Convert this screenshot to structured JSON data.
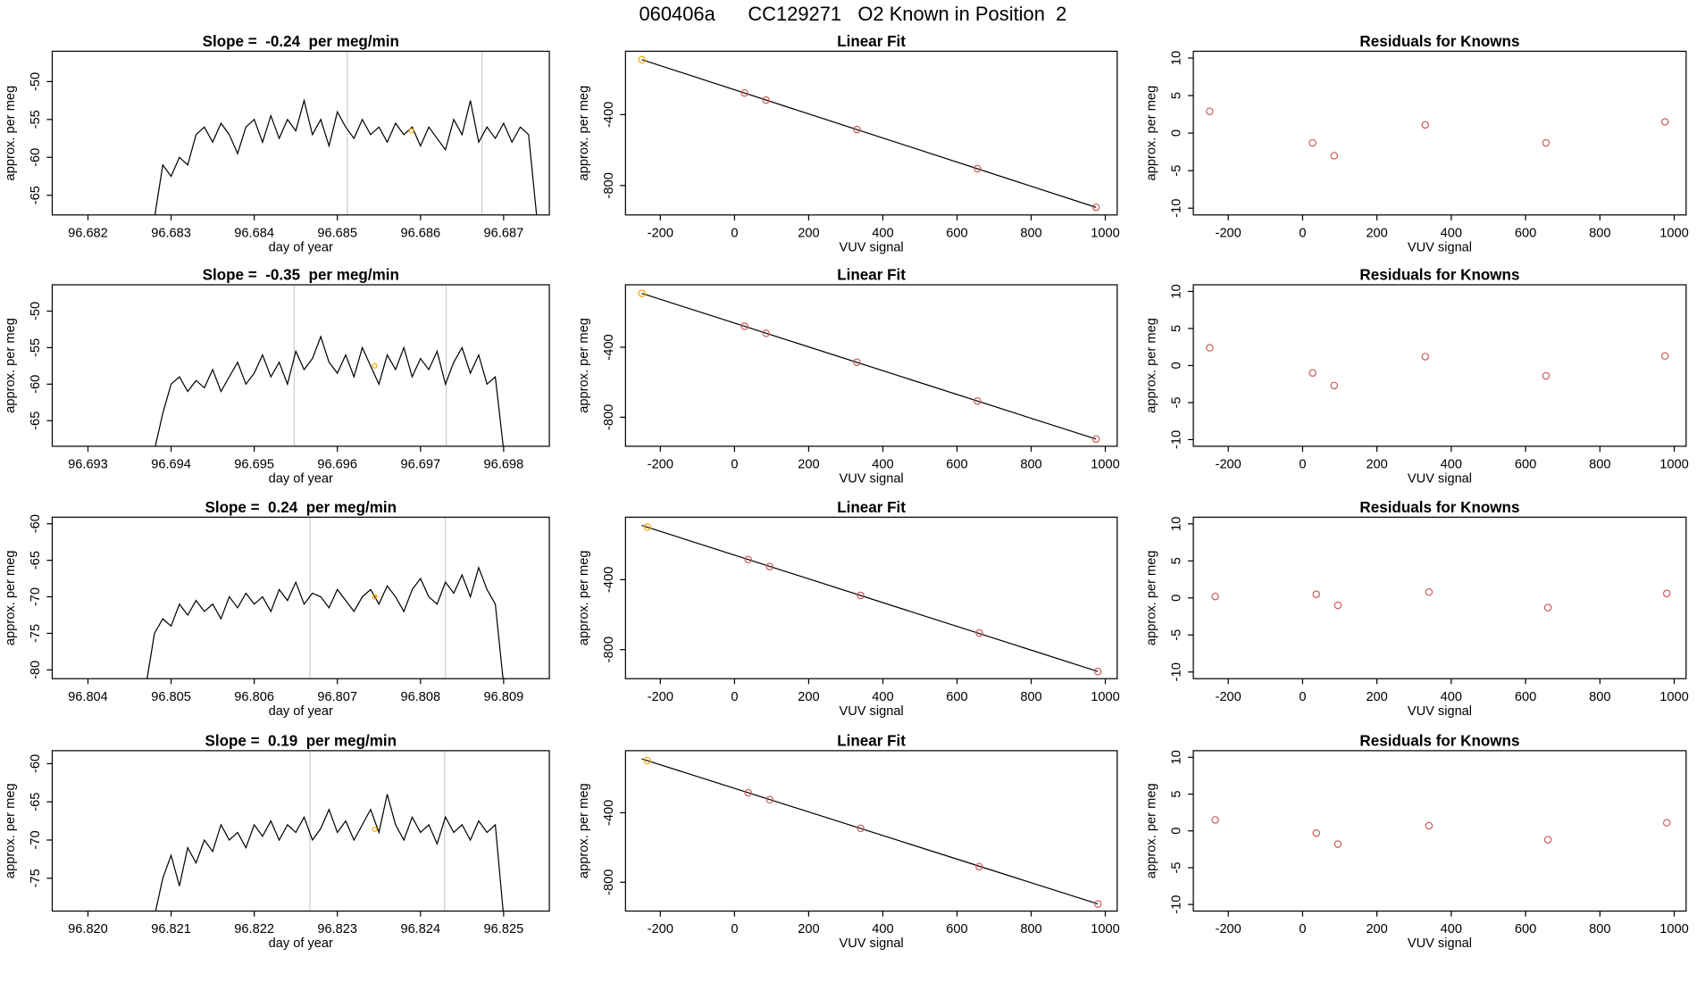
{
  "title": "060406a      CC129271   O2 Known in Position  2",
  "chart_data": [
    {
      "type": "line",
      "title": "Slope =  -0.24  per meg/min",
      "xlabel": "day of year",
      "ylabel": "approx. per meg",
      "x": [
        96.6828,
        96.6829,
        96.683,
        96.6831,
        96.6832,
        96.6833,
        96.6834,
        96.6835,
        96.6836,
        96.6837,
        96.6838,
        96.6839,
        96.684,
        96.6841,
        96.6842,
        96.6843,
        96.6844,
        96.6845,
        96.6846,
        96.6847,
        96.6848,
        96.6849,
        96.685,
        96.6851,
        96.6852,
        96.6853,
        96.6854,
        96.6855,
        96.6856,
        96.6857,
        96.6858,
        96.6859,
        96.686,
        96.6861,
        96.6862,
        96.6863,
        96.6864,
        96.6865,
        96.6866,
        96.6867,
        96.6868,
        96.6869,
        96.687,
        96.6871,
        96.6872,
        96.6873,
        96.6874
      ],
      "values": [
        -68,
        -61,
        -62.5,
        -60,
        -61,
        -57,
        -56,
        -58,
        -55.5,
        -57,
        -59.5,
        -56,
        -55,
        -58,
        -54.5,
        -57.5,
        -55,
        -56.5,
        -52.5,
        -57,
        -55,
        -58.5,
        -54,
        -56,
        -57.5,
        -55,
        -57,
        -56,
        -58,
        -55.5,
        -57,
        -56,
        -58.5,
        -56,
        -57.5,
        -59,
        -55,
        -57,
        -52.5,
        -58,
        -56,
        -57.5,
        -55.5,
        -58,
        -56,
        -57,
        -68
      ],
      "color": "#000000",
      "xlim": [
        96.68157,
        96.68755
      ],
      "ylim": [
        -67.6,
        -46.0
      ],
      "xticks": [
        96.682,
        96.683,
        96.684,
        96.685,
        96.686,
        96.687
      ],
      "yticks": [
        -65,
        -60,
        -55,
        -50
      ],
      "vlines": [
        96.68512,
        96.68674
      ],
      "vline_color": "#cccccc",
      "highlight_x": 96.68589,
      "highlight_y": -56.5,
      "highlight_color": "#ffa500"
    },
    {
      "type": "fit",
      "title": "Linear Fit",
      "xlabel": "VUV signal",
      "ylabel": "approx. per meg",
      "x": [
        -250,
        27,
        85,
        330,
        655,
        975
      ],
      "values": [
        -90,
        -278,
        -318,
        -484,
        -705,
        -923
      ],
      "colors": [
        "#ffa500",
        "#cd5c5c",
        "#cd5c5c",
        "#cd5c5c",
        "#cd5c5c",
        "#cd5c5c"
      ],
      "fit_x": [
        -250,
        975
      ],
      "fit_y": [
        -90,
        -923
      ],
      "fit_color": "#000000",
      "xlim": [
        -294,
        1032
      ],
      "ylim": [
        -966,
        -43
      ],
      "xticks": [
        -200,
        0,
        200,
        400,
        600,
        800,
        1000
      ],
      "yticks": [
        -800,
        -400
      ]
    },
    {
      "type": "scatter",
      "title": "Residuals for Knowns",
      "xlabel": "VUV signal",
      "ylabel": "approx. per meg",
      "x": [
        -250,
        27,
        85,
        330,
        655,
        975
      ],
      "values": [
        2.9,
        -1.3,
        -3.0,
        1.1,
        -1.3,
        1.5
      ],
      "color": "#cd5c5c",
      "xlim": [
        -294,
        1032
      ],
      "ylim": [
        -10.9,
        10.9
      ],
      "xticks": [
        -200,
        0,
        200,
        400,
        600,
        800,
        1000
      ],
      "yticks": [
        -10,
        -5,
        0,
        5,
        10
      ]
    },
    {
      "type": "line",
      "title": "Slope =  -0.35  per meg/min",
      "xlabel": "day of year",
      "ylabel": "approx. per meg",
      "x": [
        96.6938,
        96.6939,
        96.694,
        96.6941,
        96.6942,
        96.6943,
        96.6944,
        96.6945,
        96.6946,
        96.6947,
        96.6948,
        96.6949,
        96.695,
        96.6951,
        96.6952,
        96.6953,
        96.6954,
        96.6955,
        96.6956,
        96.6957,
        96.6958,
        96.6959,
        96.696,
        96.6961,
        96.6962,
        96.6963,
        96.6964,
        96.6965,
        96.6966,
        96.6967,
        96.6968,
        96.6969,
        96.697,
        96.6971,
        96.6972,
        96.6973,
        96.6974,
        96.6975,
        96.6976,
        96.6977,
        96.6978,
        96.6979,
        96.698
      ],
      "values": [
        -69,
        -64,
        -60,
        -59,
        -61,
        -59.5,
        -60.5,
        -58,
        -61,
        -59,
        -57,
        -60,
        -58.5,
        -56,
        -59,
        -57,
        -60,
        -55.5,
        -58,
        -56.5,
        -53.5,
        -57,
        -58.5,
        -56,
        -59,
        -55,
        -57.5,
        -60,
        -56,
        -58,
        -55,
        -59,
        -56.5,
        -58,
        -55.5,
        -60,
        -57,
        -55,
        -58.5,
        -56,
        -60,
        -59,
        -69
      ],
      "color": "#000000",
      "xlim": [
        96.69257,
        96.69855
      ],
      "ylim": [
        -68.5,
        -46.4
      ],
      "xticks": [
        96.693,
        96.694,
        96.695,
        96.696,
        96.697,
        96.698
      ],
      "yticks": [
        -65,
        -60,
        -55,
        -50
      ],
      "vlines": [
        96.69548,
        96.69731
      ],
      "vline_color": "#cccccc",
      "highlight_x": 96.69645,
      "highlight_y": -57.5,
      "highlight_color": "#ffa500"
    },
    {
      "type": "fit",
      "title": "Linear Fit",
      "xlabel": "VUV signal",
      "ylabel": "approx. per meg",
      "x": [
        -250,
        27,
        85,
        330,
        655,
        975
      ],
      "values": [
        -92,
        -280,
        -320,
        -486,
        -707,
        -925
      ],
      "colors": [
        "#ffa500",
        "#cd5c5c",
        "#cd5c5c",
        "#cd5c5c",
        "#cd5c5c",
        "#cd5c5c"
      ],
      "fit_x": [
        -250,
        975
      ],
      "fit_y": [
        -92,
        -925
      ],
      "fit_color": "#000000",
      "xlim": [
        -294,
        1032
      ],
      "ylim": [
        -966,
        -43
      ],
      "xticks": [
        -200,
        0,
        200,
        400,
        600,
        800,
        1000
      ],
      "yticks": [
        -800,
        -400
      ]
    },
    {
      "type": "scatter",
      "title": "Residuals for Knowns",
      "xlabel": "VUV signal",
      "ylabel": "approx. per meg",
      "x": [
        -250,
        27,
        85,
        330,
        655,
        975
      ],
      "values": [
        2.4,
        -1.0,
        -2.7,
        1.2,
        -1.4,
        1.3
      ],
      "color": "#cd5c5c",
      "xlim": [
        -294,
        1032
      ],
      "ylim": [
        -10.9,
        10.9
      ],
      "xticks": [
        -200,
        0,
        200,
        400,
        600,
        800,
        1000
      ],
      "yticks": [
        -10,
        -5,
        0,
        5,
        10
      ]
    },
    {
      "type": "line",
      "title": "Slope =  0.24  per meg/min",
      "xlabel": "day of year",
      "ylabel": "approx. per meg",
      "x": [
        96.8047,
        96.8048,
        96.8049,
        96.805,
        96.8051,
        96.8052,
        96.8053,
        96.8054,
        96.8055,
        96.8056,
        96.8057,
        96.8058,
        96.8059,
        96.806,
        96.8061,
        96.8062,
        96.8063,
        96.8064,
        96.8065,
        96.8066,
        96.8067,
        96.8068,
        96.8069,
        96.807,
        96.8071,
        96.8072,
        96.8073,
        96.8074,
        96.8075,
        96.8076,
        96.8077,
        96.8078,
        96.8079,
        96.808,
        96.8081,
        96.8082,
        96.8083,
        96.8084,
        96.8085,
        96.8086,
        96.8087,
        96.8088,
        96.8089,
        96.809
      ],
      "values": [
        -82,
        -75,
        -73,
        -74,
        -71,
        -72.5,
        -70.5,
        -72,
        -71,
        -73,
        -70,
        -71.5,
        -69.5,
        -71,
        -70,
        -72,
        -69,
        -70.5,
        -68,
        -71,
        -69.5,
        -70,
        -71.5,
        -69,
        -70.5,
        -72,
        -70,
        -69,
        -71,
        -68.5,
        -70,
        -72,
        -69,
        -67.5,
        -70,
        -71,
        -68,
        -69.5,
        -67,
        -70,
        -66,
        -69,
        -71,
        -82
      ],
      "color": "#000000",
      "xlim": [
        96.80357,
        96.80955
      ],
      "ylim": [
        -81.2,
        -59.1
      ],
      "xticks": [
        96.804,
        96.805,
        96.806,
        96.807,
        96.808,
        96.809
      ],
      "yticks": [
        -80,
        -75,
        -70,
        -65,
        -60
      ],
      "vlines": [
        96.80667,
        96.8083
      ],
      "vline_color": "#cccccc",
      "highlight_x": 96.80745,
      "highlight_y": -70,
      "highlight_color": "#ffa500"
    },
    {
      "type": "fit",
      "title": "Linear Fit",
      "xlabel": "VUV signal",
      "ylabel": "approx. per meg",
      "x": [
        -235,
        37,
        95,
        340,
        660,
        980
      ],
      "values": [
        -100,
        -285,
        -325,
        -490,
        -705,
        -925
      ],
      "colors": [
        "#ffa500",
        "#cd5c5c",
        "#cd5c5c",
        "#cd5c5c",
        "#cd5c5c",
        "#cd5c5c"
      ],
      "fit_x": [
        -250,
        980
      ],
      "fit_y": [
        -90,
        -925
      ],
      "fit_color": "#000000",
      "xlim": [
        -294,
        1032
      ],
      "ylim": [
        -966,
        -43
      ],
      "xticks": [
        -200,
        0,
        200,
        400,
        600,
        800,
        1000
      ],
      "yticks": [
        -800,
        -400
      ]
    },
    {
      "type": "scatter",
      "title": "Residuals for Knowns",
      "xlabel": "VUV signal",
      "ylabel": "approx. per meg",
      "x": [
        -235,
        37,
        95,
        340,
        660,
        980
      ],
      "values": [
        0.2,
        0.5,
        -1.0,
        0.8,
        -1.3,
        0.6
      ],
      "color": "#cd5c5c",
      "xlim": [
        -294,
        1032
      ],
      "ylim": [
        -10.9,
        10.9
      ],
      "xticks": [
        -200,
        0,
        200,
        400,
        600,
        800,
        1000
      ],
      "yticks": [
        -10,
        -5,
        0,
        5,
        10
      ]
    },
    {
      "type": "line",
      "title": "Slope =  0.19  per meg/min",
      "xlabel": "day of year",
      "ylabel": "approx. per meg",
      "x": [
        96.8208,
        96.8209,
        96.821,
        96.8211,
        96.8212,
        96.8213,
        96.8214,
        96.8215,
        96.8216,
        96.8217,
        96.8218,
        96.8219,
        96.822,
        96.8221,
        96.8222,
        96.8223,
        96.8224,
        96.8225,
        96.8226,
        96.8227,
        96.8228,
        96.8229,
        96.823,
        96.8231,
        96.8232,
        96.8233,
        96.8234,
        96.8235,
        96.8236,
        96.8237,
        96.8238,
        96.8239,
        96.824,
        96.8241,
        96.8242,
        96.8243,
        96.8244,
        96.8245,
        96.8246,
        96.8247,
        96.8248,
        96.8249,
        96.825
      ],
      "values": [
        -80,
        -75,
        -72,
        -76,
        -71,
        -73,
        -70,
        -71.5,
        -68,
        -70,
        -69,
        -71,
        -68,
        -69.5,
        -67.5,
        -70,
        -68,
        -69,
        -67,
        -70,
        -68.5,
        -66,
        -69,
        -67.5,
        -70,
        -68,
        -66,
        -69,
        -64,
        -68,
        -70,
        -67,
        -69,
        -68,
        -70.5,
        -67,
        -69,
        -68,
        -70,
        -67.5,
        -69,
        -68,
        -80
      ],
      "color": "#000000",
      "xlim": [
        96.81957,
        96.82555
      ],
      "ylim": [
        -79.3,
        -58.3
      ],
      "xticks": [
        {
          "value": 96.82,
          "label": "96.820"
        },
        96.821,
        96.822,
        96.823,
        96.824,
        96.825
      ],
      "yticks": [
        -75,
        -70,
        -65,
        -60
      ],
      "vlines": [
        96.82267,
        96.82429
      ],
      "vline_color": "#cccccc",
      "highlight_x": 96.82345,
      "highlight_y": -68.6,
      "highlight_color": "#ffa500"
    },
    {
      "type": "fit",
      "title": "Linear Fit",
      "xlabel": "VUV signal",
      "ylabel": "approx. per meg",
      "x": [
        -235,
        37,
        95,
        340,
        660,
        980
      ],
      "values": [
        -100,
        -285,
        -325,
        -490,
        -710,
        -925
      ],
      "colors": [
        "#ffa500",
        "#cd5c5c",
        "#cd5c5c",
        "#cd5c5c",
        "#cd5c5c",
        "#cd5c5c"
      ],
      "fit_x": [
        -250,
        980
      ],
      "fit_y": [
        -90,
        -925
      ],
      "fit_color": "#000000",
      "xlim": [
        -294,
        1032
      ],
      "ylim": [
        -966,
        -43
      ],
      "xticks": [
        -200,
        0,
        200,
        400,
        600,
        800,
        1000
      ],
      "yticks": [
        -800,
        -400
      ]
    },
    {
      "type": "scatter",
      "title": "Residuals for Knowns",
      "xlabel": "VUV signal",
      "ylabel": "approx. per meg",
      "x": [
        -235,
        37,
        95,
        340,
        660,
        980
      ],
      "values": [
        1.5,
        -0.3,
        -1.8,
        0.7,
        -1.2,
        1.1
      ],
      "color": "#cd5c5c",
      "xlim": [
        -294,
        1032
      ],
      "ylim": [
        -10.9,
        10.9
      ],
      "xticks": [
        -200,
        0,
        200,
        400,
        600,
        800,
        1000
      ],
      "yticks": [
        -10,
        -5,
        0,
        5,
        10
      ]
    }
  ]
}
